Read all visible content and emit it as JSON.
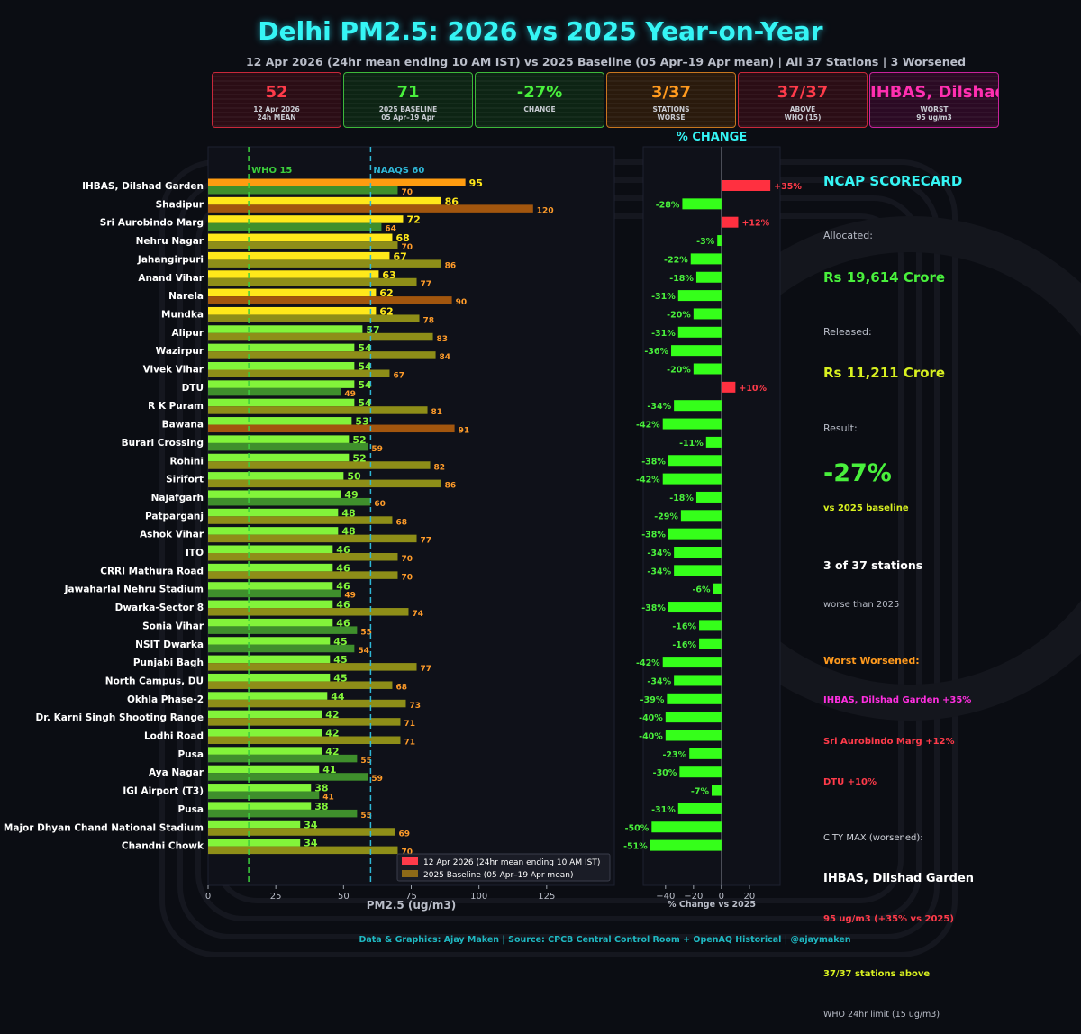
{
  "title": "Delhi PM2.5: 2026 vs 2025 Year-on-Year",
  "subtitle": "12 Apr 2026 (24hr mean ending 10 AM IST) vs 2025 Baseline (05 Apr–19 Apr mean) | All 37 Stations | 3 Worsened",
  "kpis": [
    {
      "value": "52",
      "label": "12 Apr 2026\n24h MEAN",
      "color": "#ff3b4a",
      "bg": "#2b0d15",
      "border": "#c8283a"
    },
    {
      "value": "71",
      "label": "2025 BASELINE\n05 Apr–19 Apr",
      "color": "#49f03c",
      "bg": "#0d2414",
      "border": "#3db83a"
    },
    {
      "value": "-27%",
      "label": "CHANGE",
      "color": "#49f03c",
      "bg": "#0d2414",
      "border": "#3db83a"
    },
    {
      "value": "3/37",
      "label": "STATIONS\nWORSE",
      "color": "#ff9a1e",
      "bg": "#2a1a0c",
      "border": "#c8761e"
    },
    {
      "value": "37/37",
      "label": "ABOVE\nWHO (15)",
      "color": "#ff3b4a",
      "bg": "#2b0d15",
      "border": "#c8283a"
    },
    {
      "value": "IHBAS, Dilshad",
      "label": "WORST\n95 ug/m3",
      "color": "#ff2fb0",
      "bg": "#2b0a24",
      "border": "#c8229a"
    }
  ],
  "chart_data": [
    {
      "type": "bar",
      "orientation": "horizontal",
      "title": "",
      "xlabel": "PM2.5 (ug/m3)",
      "xlim": [
        0,
        150
      ],
      "xticks": [
        "0",
        "25",
        "50",
        "75",
        "100",
        "125"
      ],
      "reference_lines": [
        {
          "label": "WHO 15",
          "value": 15,
          "color": "#3ccf3c"
        },
        {
          "label": "NAAQS 60",
          "value": 60,
          "color": "#2fb7d6"
        }
      ],
      "legend": [
        "12 Apr 2026 (24hr mean ending 10 AM IST)",
        "2025 Baseline (05 Apr–19 Apr mean)"
      ],
      "legend_position": "bottom-right",
      "categories": [
        "IHBAS, Dilshad Garden",
        "Shadipur",
        "Sri Aurobindo Marg",
        "Nehru Nagar",
        "Jahangirpuri",
        "Anand Vihar",
        "Narela",
        "Mundka",
        "Alipur",
        "Wazirpur",
        "Vivek Vihar",
        "DTU",
        "R K Puram",
        "Bawana",
        "Burari Crossing",
        "Rohini",
        "Sirifort",
        "Najafgarh",
        "Patparganj",
        "Ashok Vihar",
        "ITO",
        "CRRI Mathura Road",
        "Jawaharlal Nehru Stadium",
        "Dwarka-Sector 8",
        "Sonia Vihar",
        "NSIT Dwarka",
        "Punjabi Bagh",
        "North Campus, DU",
        "Okhla Phase-2",
        "Dr. Karni Singh Shooting Range",
        "Lodhi Road",
        "Pusa",
        "Aya Nagar",
        "IGI Airport (T3)",
        "Pusa",
        "Major Dhyan Chand National Stadium",
        "Chandni Chowk"
      ],
      "series": [
        {
          "name": "12 Apr 2026 (24hr mean ending 10 AM IST)",
          "values": [
            95,
            86,
            72,
            68,
            67,
            63,
            62,
            62,
            57,
            54,
            54,
            54,
            54,
            53,
            52,
            52,
            50,
            49,
            48,
            48,
            46,
            46,
            46,
            46,
            46,
            45,
            45,
            45,
            44,
            42,
            42,
            42,
            41,
            38,
            38,
            34,
            34
          ]
        },
        {
          "name": "2025 Baseline (05 Apr–19 Apr mean)",
          "values": [
            70,
            120,
            64,
            70,
            86,
            77,
            90,
            78,
            83,
            84,
            67,
            49,
            81,
            91,
            59,
            82,
            86,
            60,
            68,
            77,
            70,
            70,
            49,
            74,
            55,
            54,
            77,
            68,
            73,
            71,
            71,
            55,
            59,
            41,
            55,
            69,
            70
          ]
        }
      ]
    },
    {
      "type": "bar",
      "orientation": "horizontal",
      "title": "% CHANGE",
      "xlabel": "% Change vs 2025",
      "xlim": [
        -56,
        42
      ],
      "xticks": [
        "−40",
        "−20",
        "0",
        "20"
      ],
      "values": [
        35,
        -28,
        12,
        -3,
        -22,
        -18,
        -31,
        -20,
        -31,
        -36,
        -20,
        10,
        -34,
        -42,
        -11,
        -38,
        -42,
        -18,
        -29,
        -38,
        -34,
        -34,
        -6,
        -38,
        -16,
        -16,
        -42,
        -34,
        -39,
        -40,
        -40,
        -23,
        -30,
        -7,
        -31,
        -50,
        -51
      ],
      "labels": [
        "+35%",
        "-28%",
        "+12%",
        "-3%",
        "-22%",
        "-18%",
        "-31%",
        "-20%",
        "-31%",
        "-36%",
        "-20%",
        "+10%",
        "-34%",
        "-42%",
        "-11%",
        "-38%",
        "-42%",
        "-18%",
        "-29%",
        "-38%",
        "-34%",
        "-34%",
        "-6%",
        "-38%",
        "-16%",
        "-16%",
        "-42%",
        "-34%",
        "-39%",
        "-40%",
        "-40%",
        "-23%",
        "-30%",
        "-7%",
        "-31%",
        "-50%",
        "-51%"
      ]
    }
  ],
  "scorecard": {
    "heading": "NCAP SCORECARD",
    "allocated_label": "Allocated:",
    "allocated_value": "Rs 19,614 Crore",
    "released_label": "Released:",
    "released_value": "Rs 11,211 Crore",
    "result_label": "Result:",
    "result_value": "-27%",
    "result_note": "vs 2025 baseline",
    "worse_count": "3 of 37 stations",
    "worse_note": "worse than 2025",
    "worst_heading": "Worst Worsened:",
    "worst_1": "IHBAS, Dilshad Garden +35%",
    "worst_2": "Sri Aurobindo Marg +12%",
    "worst_3": "DTU +10%",
    "city_max_label": "CITY MAX (worsened):",
    "city_max_station": "IHBAS, Dilshad Garden",
    "city_max_value": "95 ug/m3 (+35% vs 2025)",
    "above_who": "37/37 stations above",
    "above_who_note": "WHO 24hr limit (15 ug/m3)"
  },
  "footer": "Data & Graphics: Ajay Maken | Source: CPCB Central Control Room + OpenAQ Historical | @ajaymaken"
}
